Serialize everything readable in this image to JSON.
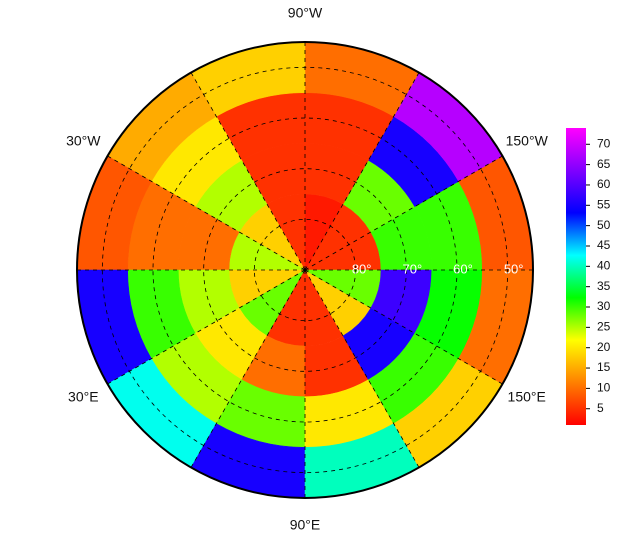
{
  "map_data": {
    "lon_labels": [
      {
        "value": -90,
        "label": "90°W"
      },
      {
        "value": -30,
        "label": "30°W"
      },
      {
        "value": -150,
        "label": "150°W"
      },
      {
        "value": 30,
        "label": "30°E"
      },
      {
        "value": 150,
        "label": "150°E"
      },
      {
        "value": 90,
        "label": "90°E"
      }
    ],
    "lat_circles": [
      {
        "value": 80,
        "label": "80°"
      },
      {
        "value": 70,
        "label": "70°"
      },
      {
        "value": 60,
        "label": "60°"
      },
      {
        "value": 50,
        "label": "50°"
      }
    ],
    "latlim": [
      45,
      90
    ],
    "lat_band_edges": [
      90,
      75,
      65,
      55,
      45
    ],
    "lon_edges": [
      -180,
      -150,
      -120,
      -90,
      -60,
      -30,
      0,
      30,
      60,
      90,
      120,
      150,
      180
    ],
    "field": [
      [
        5,
        5,
        3,
        5,
        18,
        25,
        18,
        28,
        5,
        5,
        18,
        28
      ],
      [
        30,
        28,
        5,
        5,
        25,
        10,
        25,
        20,
        10,
        5,
        55,
        58
      ],
      [
        30,
        55,
        5,
        5,
        20,
        10,
        30,
        25,
        28,
        20,
        30,
        32
      ],
      [
        8,
        68,
        10,
        18,
        15,
        8,
        55,
        42,
        55,
        40,
        18,
        10
      ]
    ],
    "colorbar": {
      "lim": [
        1,
        74
      ],
      "ticks": [
        5,
        10,
        15,
        20,
        25,
        30,
        35,
        40,
        45,
        50,
        55,
        60,
        65,
        70
      ],
      "colors": [
        "#ff0000",
        "#ff8000",
        "#ffff00",
        "#00ff00",
        "#00ffff",
        "#0000ff",
        "#8000ff",
        "#ff00ff"
      ]
    }
  }
}
